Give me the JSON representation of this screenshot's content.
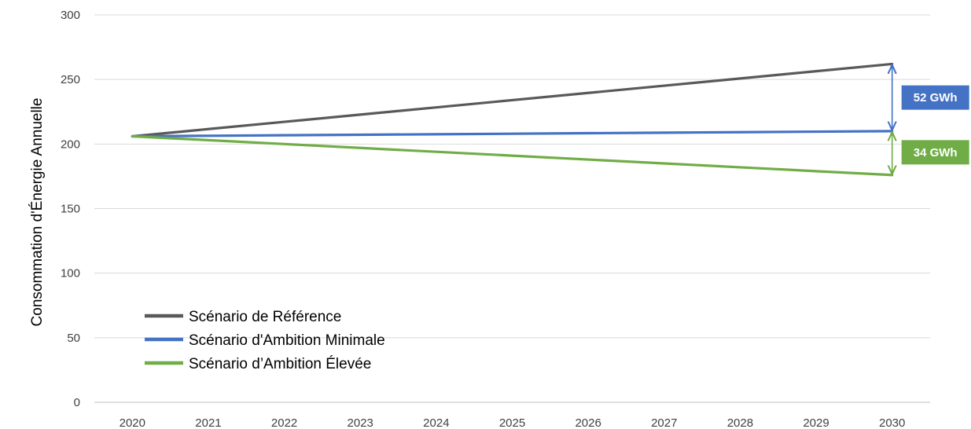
{
  "chart_data": {
    "type": "line",
    "ylabel": "Consommation d'Énergie Annuelle",
    "xlabel": "",
    "x": [
      "2020",
      "2021",
      "2022",
      "2023",
      "2024",
      "2025",
      "2026",
      "2027",
      "2028",
      "2029",
      "2030"
    ],
    "ylim": [
      0,
      300
    ],
    "yticks": [
      0,
      50,
      100,
      150,
      200,
      250,
      300
    ],
    "grid": true,
    "legend_position": "bottom-left",
    "series": [
      {
        "name": "Scénario de Référence",
        "color": "#595959",
        "values": [
          206,
          211.6,
          217.2,
          222.8,
          228.4,
          234,
          239.6,
          245.2,
          250.8,
          256.4,
          262
        ]
      },
      {
        "name": "Scénario d'Ambition Minimale",
        "color": "#4472C4",
        "values": [
          206,
          206.4,
          206.8,
          207.2,
          207.6,
          208,
          208.4,
          208.8,
          209.2,
          209.6,
          210
        ]
      },
      {
        "name": "Scénario d’Ambition Élevée",
        "color": "#70AD47",
        "values": [
          206,
          203,
          200,
          197,
          194,
          191,
          188,
          185,
          182,
          179,
          176
        ]
      }
    ],
    "annotations": [
      {
        "label": "52 GWh",
        "color": "#4472C4",
        "x": "2030",
        "from": 262,
        "to": 210
      },
      {
        "label": "34 GWh",
        "color": "#70AD47",
        "x": "2030",
        "from": 210,
        "to": 176
      }
    ]
  }
}
